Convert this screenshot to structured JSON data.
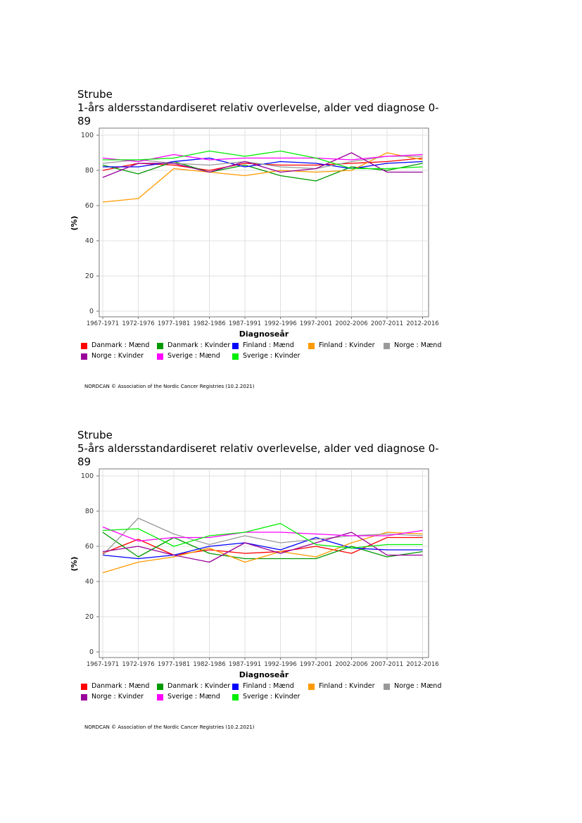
{
  "series_style": [
    {
      "name": "Danmark : Mænd",
      "color": "#ff0000"
    },
    {
      "name": "Danmark : Kvinder",
      "color": "#009900"
    },
    {
      "name": "Finland : Mænd",
      "color": "#0000ff"
    },
    {
      "name": "Finland : Kvinder",
      "color": "#ff9900"
    },
    {
      "name": "Norge : Mænd",
      "color": "#999999"
    },
    {
      "name": "Norge : Kvinder",
      "color": "#990099"
    },
    {
      "name": "Sverige : Mænd",
      "color": "#ff00ff"
    },
    {
      "name": "Sverige : Kvinder",
      "color": "#00ee00"
    }
  ],
  "chart_data": [
    {
      "type": "line",
      "title": "Strube",
      "subtitle": "1-års aldersstandardiseret relativ overlevelse, alder ved diagnose 0-89",
      "xlabel": "Diagnoseår",
      "ylabel": "(%)",
      "ylim": [
        0,
        100
      ],
      "yticks": [
        0,
        20,
        40,
        60,
        80,
        100
      ],
      "grid": true,
      "legend_position": "bottom",
      "credit": "NORDCAN © Association of the Nordic Cancer Registries (10.2.2021)",
      "categories": [
        "1967-1971",
        "1972-1976",
        "1977-1981",
        "1982-1986",
        "1987-1991",
        "1992-1996",
        "1997-2001",
        "2002-2006",
        "2007-2011",
        "2012-2016"
      ],
      "series": [
        {
          "name": "Danmark : Mænd",
          "values": [
            80,
            84,
            83,
            80,
            84,
            83,
            83,
            84,
            85,
            87
          ]
        },
        {
          "name": "Danmark : Kvinder",
          "values": [
            83,
            78,
            85,
            79,
            83,
            77,
            74,
            82,
            80,
            84
          ]
        },
        {
          "name": "Finland : Mænd",
          "values": [
            82,
            82,
            85,
            87,
            82,
            85,
            84,
            81,
            84,
            85
          ]
        },
        {
          "name": "Finland : Kvinder",
          "values": [
            62,
            64,
            81,
            79,
            77,
            80,
            79,
            80,
            90,
            86
          ]
        },
        {
          "name": "Norge : Mænd",
          "values": [
            84,
            86,
            84,
            83,
            85,
            82,
            81,
            85,
            88,
            88
          ]
        },
        {
          "name": "Norge : Kvinder",
          "values": [
            76,
            84,
            84,
            79,
            85,
            79,
            81,
            90,
            79,
            79
          ]
        },
        {
          "name": "Sverige : Mænd",
          "values": [
            87,
            85,
            89,
            86,
            87,
            87,
            87,
            86,
            88,
            89
          ]
        },
        {
          "name": "Sverige : Kvinder",
          "values": [
            86,
            86,
            87,
            91,
            88,
            91,
            87,
            81,
            81,
            82
          ]
        }
      ]
    },
    {
      "type": "line",
      "title": "Strube",
      "subtitle": "5-års aldersstandardiseret relativ overlevelse, alder ved diagnose 0-89",
      "xlabel": "Diagnoseår",
      "ylabel": "(%)",
      "ylim": [
        0,
        100
      ],
      "yticks": [
        0,
        20,
        40,
        60,
        80,
        100
      ],
      "grid": true,
      "legend_position": "bottom",
      "credit": "NORDCAN © Association of the Nordic Cancer Registries (10.2.2021)",
      "categories": [
        "1967-1971",
        "1972-1976",
        "1977-1981",
        "1982-1986",
        "1987-1991",
        "1992-1996",
        "1997-2001",
        "2002-2006",
        "2007-2011",
        "2012-2016"
      ],
      "series": [
        {
          "name": "Danmark : Mænd",
          "values": [
            56,
            64,
            55,
            58,
            56,
            57,
            60,
            56,
            65,
            65
          ]
        },
        {
          "name": "Danmark : Kvinder",
          "values": [
            68,
            54,
            65,
            56,
            53,
            53,
            53,
            60,
            54,
            57
          ]
        },
        {
          "name": "Finland : Mænd",
          "values": [
            55,
            53,
            55,
            60,
            62,
            58,
            65,
            59,
            58,
            58
          ]
        },
        {
          "name": "Finland : Kvinder",
          "values": [
            45,
            51,
            54,
            59,
            51,
            57,
            54,
            62,
            68,
            67
          ]
        },
        {
          "name": "Norge : Mænd",
          "values": [
            55,
            76,
            67,
            61,
            66,
            62,
            64,
            66,
            67,
            66
          ]
        },
        {
          "name": "Norge : Kvinder",
          "values": [
            57,
            60,
            55,
            51,
            62,
            56,
            62,
            68,
            55,
            55
          ]
        },
        {
          "name": "Sverige : Mænd",
          "values": [
            71,
            63,
            65,
            65,
            68,
            68,
            67,
            66,
            66,
            69
          ]
        },
        {
          "name": "Sverige : Kvinder",
          "values": [
            69,
            70,
            60,
            66,
            68,
            73,
            61,
            59,
            61,
            61
          ]
        }
      ]
    }
  ]
}
